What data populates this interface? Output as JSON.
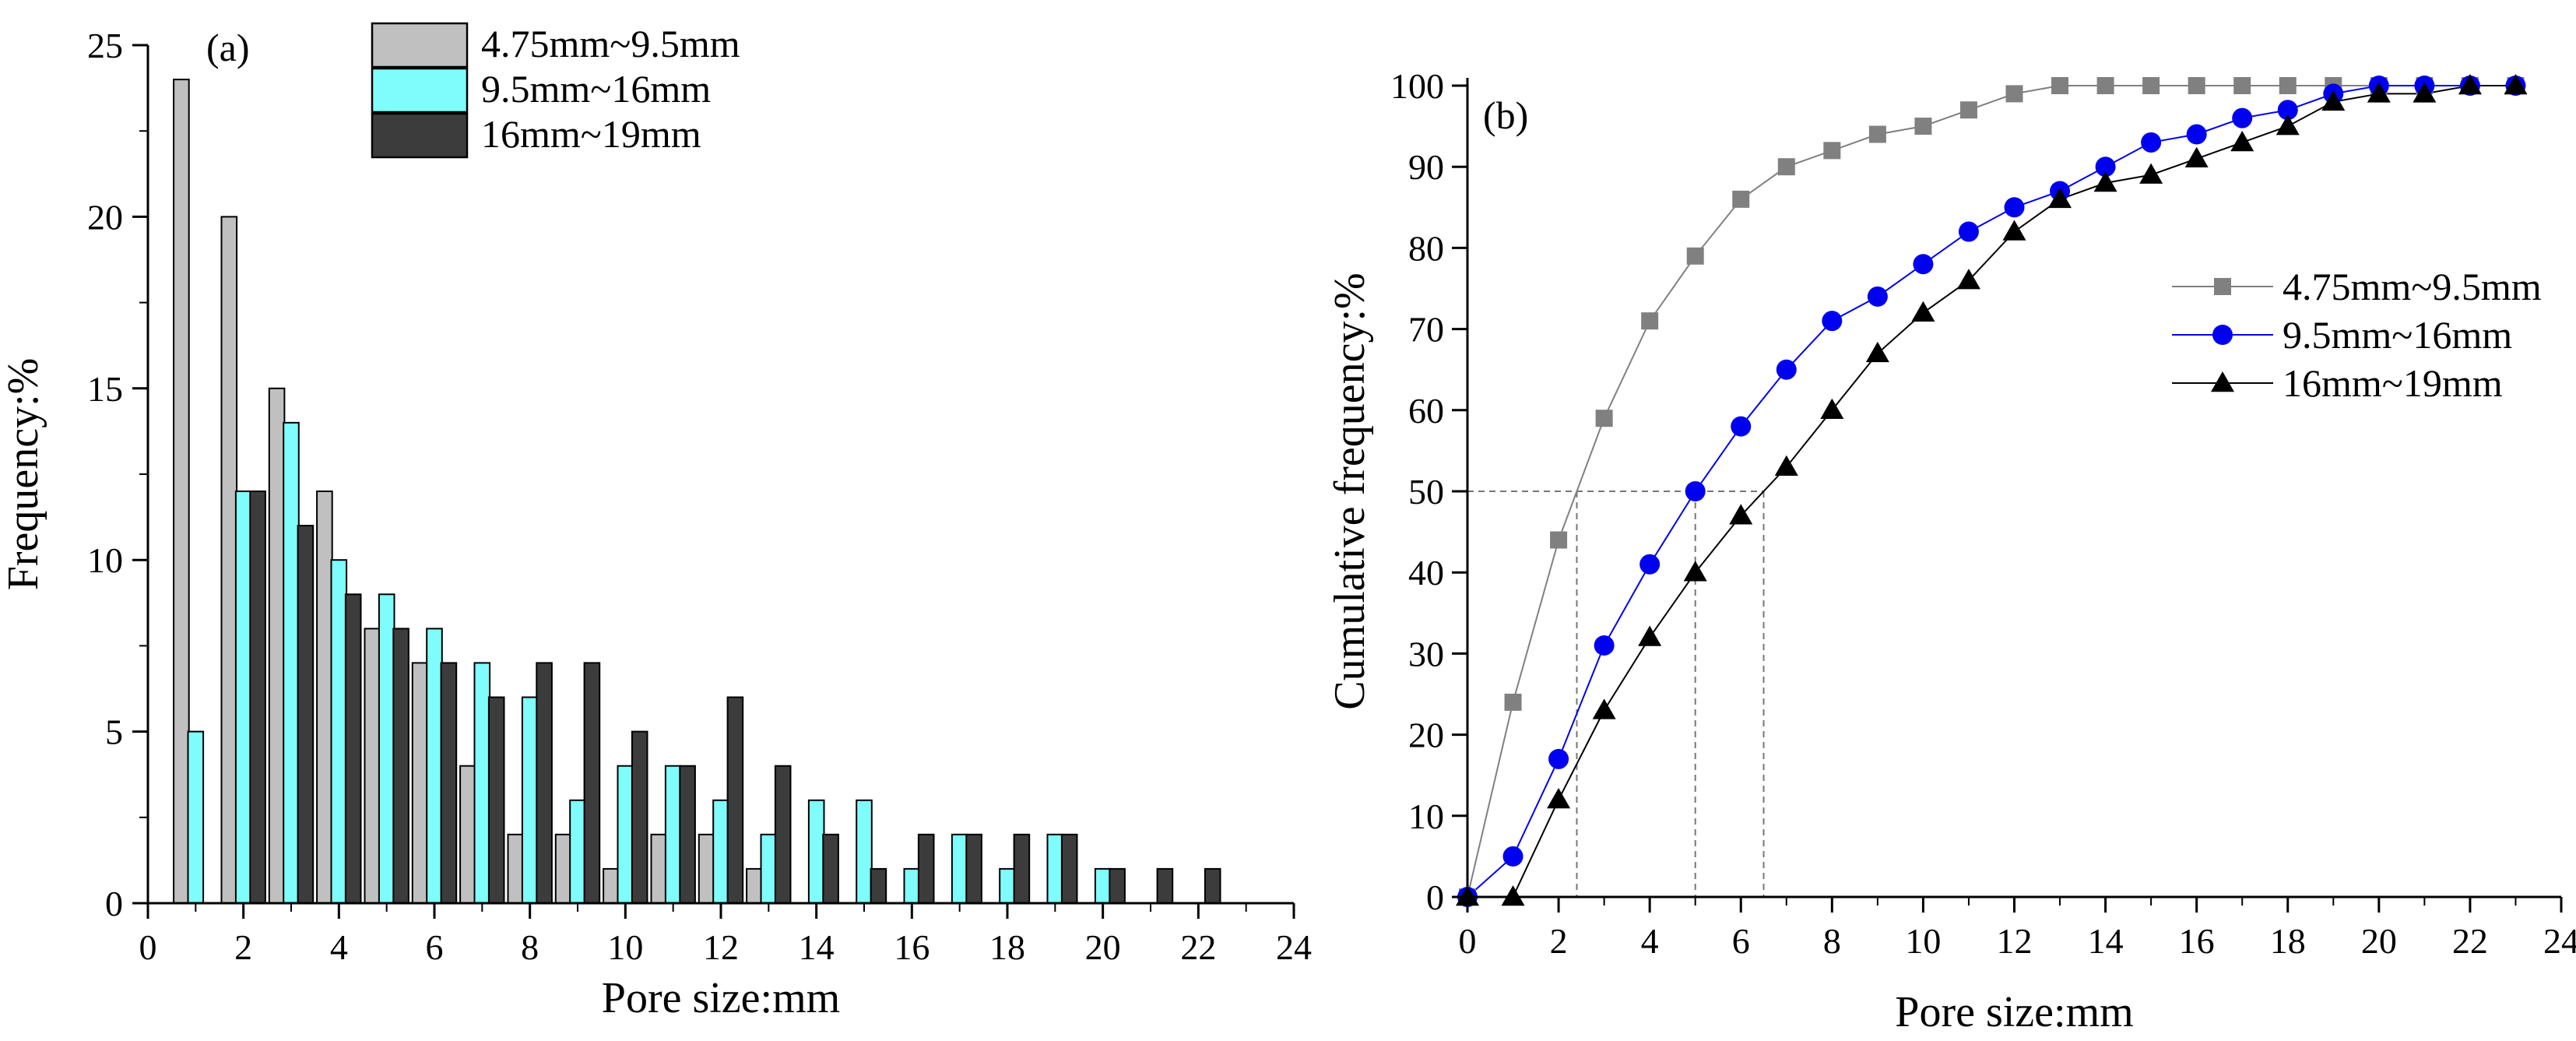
{
  "chart_data": [
    {
      "panel_label": "(a)",
      "type": "bar",
      "xlabel": "Pore size:mm",
      "ylabel": "Frequency:%",
      "xlim": [
        0,
        24
      ],
      "ylim": [
        0,
        25
      ],
      "xticks": [
        "0",
        "2",
        "4",
        "6",
        "8",
        "10",
        "12",
        "14",
        "16",
        "18",
        "20",
        "22",
        "24"
      ],
      "yticks": [
        "0",
        "5",
        "10",
        "15",
        "20",
        "25"
      ],
      "bar_width": 0.32,
      "legend_position": "top-center",
      "series": [
        {
          "name": "4.75mm~9.5mm",
          "color": "#c0c0c0",
          "x": [
            0.7,
            1.7,
            2.7,
            3.7,
            4.7,
            5.7,
            6.7,
            7.7,
            8.7,
            9.7,
            10.7,
            11.7,
            12.7
          ],
          "values": [
            24,
            20,
            15,
            12,
            8,
            7,
            4,
            2,
            2,
            1,
            2,
            2,
            1
          ]
        },
        {
          "name": "9.5mm~16mm",
          "color": "#7ffcfc",
          "x": [
            1.0,
            2.0,
            3.0,
            4.0,
            5.0,
            6.0,
            7.0,
            8.0,
            9.0,
            10.0,
            11.0,
            12.0,
            13.0,
            14.0,
            15.0,
            16.0,
            17.0,
            18.0,
            19.0,
            20.0
          ],
          "values": [
            5,
            12,
            14,
            10,
            9,
            8,
            7,
            6,
            3,
            4,
            4,
            3,
            2,
            3,
            3,
            1,
            2,
            1,
            2,
            1
          ]
        },
        {
          "name": "16mm~19mm",
          "color": "#3c3c3c",
          "x": [
            2.3,
            3.3,
            4.3,
            5.3,
            6.3,
            7.3,
            8.3,
            9.3,
            10.3,
            11.3,
            12.3,
            13.3,
            14.3,
            15.3,
            16.3,
            17.3,
            18.3,
            19.3,
            20.3,
            21.3,
            22.3
          ],
          "values": [
            12,
            11,
            9,
            8,
            7,
            6,
            7,
            7,
            5,
            4,
            6,
            4,
            2,
            1,
            2,
            2,
            2,
            2,
            1,
            1,
            1
          ]
        }
      ]
    },
    {
      "panel_label": "(b)",
      "type": "line",
      "xlabel": "Pore size:mm",
      "ylabel": "Cumulative frequency:%",
      "xlim": [
        0,
        24
      ],
      "ylim": [
        0,
        100
      ],
      "xticks": [
        "0",
        "2",
        "4",
        "6",
        "8",
        "10",
        "12",
        "14",
        "16",
        "18",
        "20",
        "22",
        "24"
      ],
      "yticks": [
        "0",
        "10",
        "20",
        "30",
        "40",
        "50",
        "60",
        "70",
        "80",
        "90",
        "100"
      ],
      "legend_position": "right-upper",
      "reference_lines": {
        "y": 50,
        "x_values": [
          2.4,
          5.0,
          6.5
        ]
      },
      "series": [
        {
          "name": "4.75mm~9.5mm",
          "color": "#808080",
          "marker": "square",
          "x": [
            0,
            1,
            2,
            3,
            4,
            5,
            6,
            7,
            8,
            9,
            10,
            11,
            12,
            13,
            14,
            15,
            16,
            17,
            18,
            19,
            20,
            21,
            22,
            23
          ],
          "values": [
            0,
            24,
            44,
            59,
            71,
            79,
            86,
            90,
            92,
            94,
            95,
            97,
            99,
            100,
            100,
            100,
            100,
            100,
            100,
            100,
            100,
            100,
            100,
            100
          ]
        },
        {
          "name": "9.5mm~16mm",
          "color": "#0000f0",
          "marker": "circle",
          "x": [
            0,
            1,
            2,
            3,
            4,
            5,
            6,
            7,
            8,
            9,
            10,
            11,
            12,
            13,
            14,
            15,
            16,
            17,
            18,
            19,
            20,
            21,
            22,
            23
          ],
          "values": [
            0,
            5,
            17,
            31,
            41,
            50,
            58,
            65,
            71,
            74,
            78,
            82,
            85,
            87,
            90,
            93,
            94,
            96,
            97,
            99,
            100,
            100,
            100,
            100
          ]
        },
        {
          "name": "16mm~19mm",
          "color": "#000000",
          "marker": "triangle",
          "x": [
            0,
            1,
            2,
            3,
            4,
            5,
            6,
            7,
            8,
            9,
            10,
            11,
            12,
            13,
            14,
            15,
            16,
            17,
            18,
            19,
            20,
            21,
            22,
            23
          ],
          "values": [
            0,
            0,
            12,
            23,
            32,
            40,
            47,
            53,
            60,
            67,
            72,
            76,
            82,
            86,
            88,
            89,
            91,
            93,
            95,
            98,
            99,
            99,
            100,
            100
          ]
        }
      ]
    }
  ]
}
